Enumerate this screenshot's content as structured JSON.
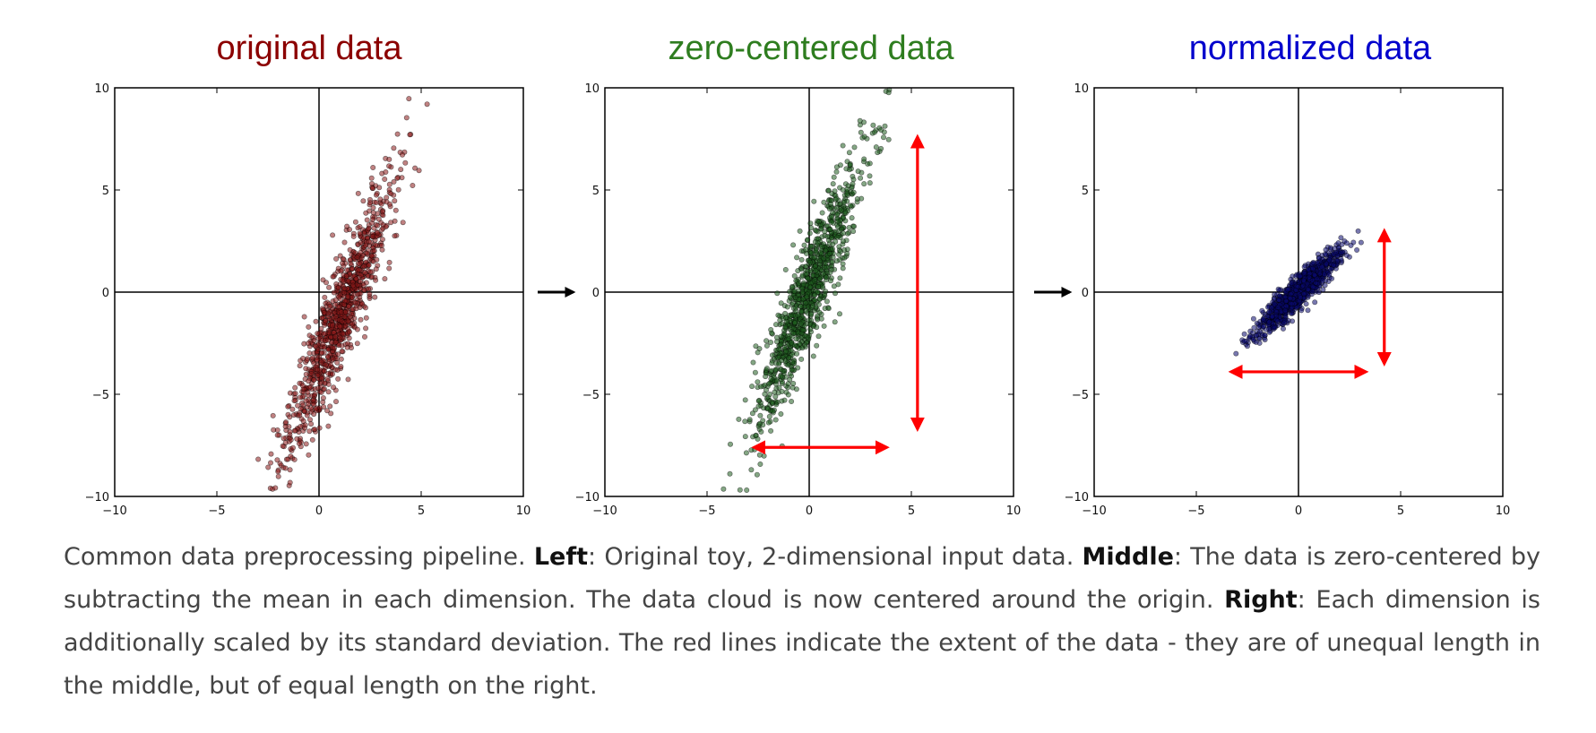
{
  "panels": [
    {
      "title": "original data",
      "title_color": "#8b0000",
      "point_color": "#8b1a1a",
      "x_ticks": [
        "−10",
        "−5",
        "0",
        "5",
        "10"
      ],
      "y_ticks": [
        "−10",
        "−5",
        "0",
        "5",
        "10"
      ]
    },
    {
      "title": "zero-centered data",
      "title_color": "#2e7d1f",
      "point_color": "#1f5c1f",
      "x_ticks": [
        "−10",
        "−5",
        "0",
        "5",
        "10"
      ],
      "y_ticks": [
        "−10",
        "−5",
        "0",
        "5",
        "10"
      ]
    },
    {
      "title": "normalized data",
      "title_color": "#0000cc",
      "point_color": "#0a0a6e",
      "x_ticks": [
        "−10",
        "−5",
        "0",
        "5",
        "10"
      ],
      "y_ticks": [
        "−10",
        "−5",
        "0",
        "5",
        "10"
      ]
    }
  ],
  "extent_color": "#ff0000",
  "chart_data": [
    {
      "type": "scatter",
      "title": "original data",
      "xlim": [
        -10,
        10
      ],
      "ylim": [
        -10,
        10
      ],
      "grid": false,
      "cloud": {
        "center": [
          1,
          -1.2
        ],
        "x_std": 1.3,
        "y_std": 3.3,
        "corr": 0.92,
        "n": 1000
      },
      "extent_arrows": []
    },
    {
      "type": "scatter",
      "title": "zero-centered data",
      "xlim": [
        -10,
        10
      ],
      "ylim": [
        -10,
        10
      ],
      "grid": false,
      "cloud": {
        "center": [
          0,
          0
        ],
        "x_std": 1.3,
        "y_std": 3.3,
        "corr": 0.92,
        "n": 1000
      },
      "extent_arrows": [
        {
          "x1": 5.3,
          "y1": 7.6,
          "x2": 5.3,
          "y2": -6.7
        },
        {
          "x1": -2.7,
          "y1": -7.6,
          "x2": 3.8,
          "y2": -7.6
        }
      ]
    },
    {
      "type": "scatter",
      "title": "normalized data",
      "xlim": [
        -10,
        10
      ],
      "ylim": [
        -10,
        10
      ],
      "grid": false,
      "cloud": {
        "center": [
          0,
          0
        ],
        "x_std": 1.0,
        "y_std": 1.0,
        "corr": 0.92,
        "n": 1000
      },
      "extent_arrows": [
        {
          "x1": 4.2,
          "y1": 3.0,
          "x2": 4.2,
          "y2": -3.5
        },
        {
          "x1": -3.3,
          "y1": -3.9,
          "x2": 3.3,
          "y2": -3.9
        }
      ]
    }
  ],
  "caption": {
    "intro": "Common data preprocessing pipeline. ",
    "left_label": "Left",
    "left_text": ": Original toy, 2-dimensional input data. ",
    "middle_label": "Middle",
    "middle_text": ": The data is zero-centered by subtracting the mean in each dimension. The data cloud is now centered around the origin. ",
    "right_label": "Right",
    "right_text": ": Each dimension is additionally scaled by its standard deviation. The red lines indicate the extent of the data - they are of unequal length in the middle, but of equal length on the right."
  }
}
